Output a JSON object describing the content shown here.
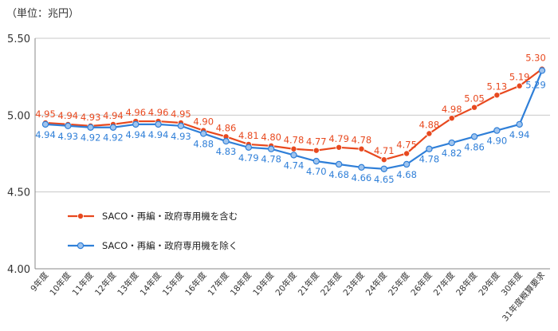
{
  "chart_data": {
    "type": "line",
    "unit_label": "（単位：兆円）",
    "categories": [
      "9年度",
      "10年度",
      "11年度",
      "12年度",
      "13年度",
      "14年度",
      "15年度",
      "16年度",
      "17年度",
      "18年度",
      "19年度",
      "20年度",
      "21年度",
      "22年度",
      "23年度",
      "24年度",
      "25年度",
      "26年度",
      "27年度",
      "28年度",
      "29年度",
      "30年度",
      "31年度概算要求"
    ],
    "ylim": [
      4.0,
      5.5
    ],
    "yticks": [
      "4.00",
      "4.50",
      "5.00",
      "5.50"
    ],
    "series": [
      {
        "name": "SACO・再編・政府専用機を含む",
        "color": "#e8491f",
        "values": [
          4.95,
          4.94,
          4.93,
          4.94,
          4.96,
          4.96,
          4.95,
          4.9,
          4.86,
          4.81,
          4.8,
          4.78,
          4.77,
          4.79,
          4.78,
          4.71,
          4.75,
          4.88,
          4.98,
          5.05,
          5.13,
          5.19,
          5.3
        ],
        "labels": [
          "4.95",
          "4.94",
          "4.93",
          "4.94",
          "4.96",
          "4.96",
          "4.95",
          "4.90",
          "4.86",
          "4.81",
          "4.80",
          "4.78",
          "4.77",
          "4.79",
          "4.78",
          "4.71",
          "4.75",
          "4.88",
          "4.98",
          "5.05",
          "5.13",
          "5.19",
          "5.30"
        ]
      },
      {
        "name": "SACO・再編・政府専用機を除く",
        "color": "#2f7fd8",
        "values": [
          4.94,
          4.93,
          4.92,
          4.92,
          4.94,
          4.94,
          4.93,
          4.88,
          4.83,
          4.79,
          4.78,
          4.74,
          4.7,
          4.68,
          4.66,
          4.65,
          4.68,
          4.78,
          4.82,
          4.86,
          4.9,
          4.94,
          5.29
        ],
        "labels": [
          "4.94",
          "4.93",
          "4.92",
          "4.92",
          "4.94",
          "4.94",
          "4.93",
          "4.88",
          "4.83",
          "4.79",
          "4.78",
          "4.74",
          "4.70",
          "4.68",
          "4.66",
          "4.65",
          "4.68",
          "4.78",
          "4.82",
          "4.86",
          "4.90",
          "4.94",
          "5.29"
        ]
      }
    ],
    "legend_position": "lower-left"
  }
}
